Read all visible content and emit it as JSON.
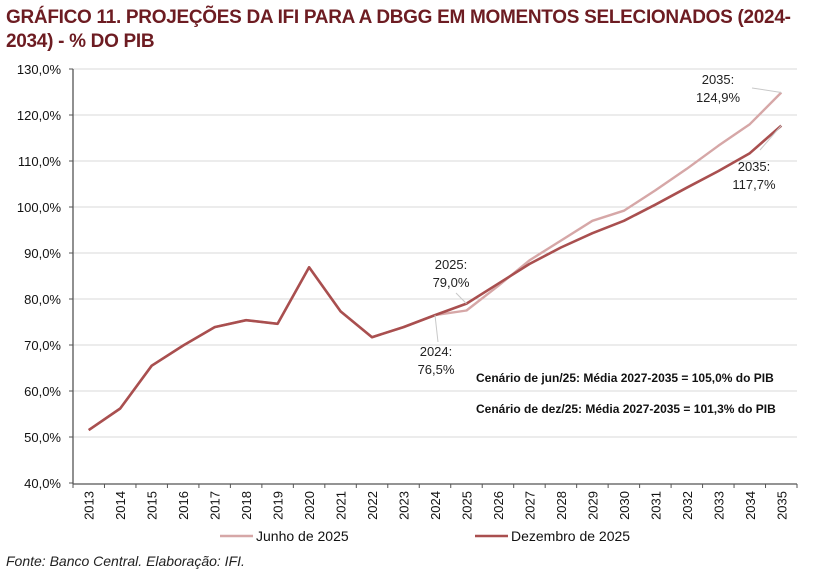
{
  "title": "GRÁFICO 11. PROJEÇÕES DA IFI PARA A DBGG EM MOMENTOS SELECIONADOS (2024-2034) - % DO PIB",
  "source": "Fonte: Banco Central. Elaboração: IFI.",
  "colors": {
    "title": "#6d1c22",
    "junho": "#d6a7a7",
    "dezembro": "#a94f4f",
    "grid": "#d9d9d9",
    "axis": "#555555"
  },
  "chart_data": {
    "type": "line",
    "title": "GRÁFICO 11. PROJEÇÕES DA IFI PARA A DBGG EM MOMENTOS SELECIONADOS (2024-2034) - % DO PIB",
    "xlabel": "",
    "ylabel": "",
    "ylim": [
      40,
      130
    ],
    "yticks": [
      "40,0%",
      "50,0%",
      "60,0%",
      "70,0%",
      "80,0%",
      "90,0%",
      "100,0%",
      "110,0%",
      "120,0%",
      "130,0%"
    ],
    "ytick_values": [
      40,
      50,
      60,
      70,
      80,
      90,
      100,
      110,
      120,
      130
    ],
    "grid": true,
    "legend_position": "bottom",
    "categories": [
      "2013",
      "2014",
      "2015",
      "2016",
      "2017",
      "2018",
      "2019",
      "2020",
      "2021",
      "2022",
      "2023",
      "2024",
      "2025",
      "2026",
      "2027",
      "2028",
      "2029",
      "2030",
      "2031",
      "2032",
      "2033",
      "2034",
      "2035"
    ],
    "series": [
      {
        "name": "Junho de 2025",
        "color": "#d6a7a7",
        "values": [
          51.5,
          56.2,
          65.5,
          69.9,
          73.9,
          75.4,
          74.6,
          86.9,
          77.3,
          71.7,
          73.9,
          76.5,
          77.5,
          82.8,
          88.4,
          92.7,
          97.0,
          99.2,
          103.6,
          108.3,
          113.3,
          118.0,
          124.9
        ]
      },
      {
        "name": "Dezembro de 2025",
        "color": "#a94f4f",
        "values": [
          51.5,
          56.2,
          65.5,
          69.9,
          73.9,
          75.4,
          74.6,
          86.9,
          77.3,
          71.7,
          73.9,
          76.5,
          79.0,
          83.3,
          87.6,
          91.2,
          94.3,
          97.0,
          100.5,
          104.2,
          107.8,
          111.7,
          117.7
        ]
      }
    ],
    "annotations": [
      {
        "series": "Dezembro de 2025",
        "category": "2024",
        "line1": "2024:",
        "line2": "76,5%"
      },
      {
        "series": "Dezembro de 2025",
        "category": "2025",
        "line1": "2025:",
        "line2": "79,0%"
      },
      {
        "series": "Junho de 2025",
        "category": "2035",
        "line1": "2035:",
        "line2": "124,9%"
      },
      {
        "series": "Dezembro de 2025",
        "category": "2035",
        "line1": "2035:",
        "line2": "117,7%"
      }
    ],
    "notes": [
      "Cenário de jun/25: Média 2027-2035 = 105,0% do PIB",
      "Cenário de dez/25: Média 2027-2035 = 101,3% do PIB"
    ]
  }
}
